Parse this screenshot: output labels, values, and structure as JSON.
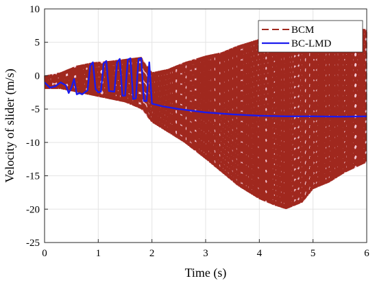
{
  "chart_data": {
    "type": "line",
    "xlabel": "Time (s)",
    "ylabel": "Velocity of slider (m/s)",
    "xlim": [
      0,
      6
    ],
    "ylim": [
      -25,
      10
    ],
    "xticks": [
      "0",
      "1",
      "2",
      "3",
      "4",
      "5",
      "6"
    ],
    "yticks": [
      "10",
      "5",
      "0",
      "-5",
      "-10",
      "-15",
      "-20",
      "-25"
    ],
    "grid": true,
    "legend_position": "top-right",
    "series": [
      {
        "name": "BCM",
        "color": "#a0281e",
        "style": "dashed",
        "envelope": {
          "t": [
            0.0,
            0.3,
            0.6,
            0.9,
            1.2,
            1.5,
            1.8,
            2.0,
            2.3,
            2.6,
            3.0,
            3.3,
            3.6,
            4.0,
            4.3,
            4.5,
            4.8,
            5.0,
            5.3,
            5.6,
            6.0
          ],
          "upper": [
            0.0,
            0.5,
            1.5,
            2.0,
            2.2,
            2.5,
            2.8,
            0.5,
            1.0,
            2.0,
            3.0,
            3.5,
            4.5,
            5.5,
            6.0,
            6.5,
            7.0,
            7.0,
            7.0,
            7.0,
            7.0
          ],
          "lower": [
            -2.0,
            -2.0,
            -2.5,
            -3.0,
            -3.5,
            -4.0,
            -5.0,
            -7.0,
            -8.5,
            -10.0,
            -12.5,
            -14.5,
            -16.5,
            -18.5,
            -19.5,
            -20.0,
            -19.0,
            -17.0,
            -16.0,
            -14.5,
            -13.0
          ]
        }
      },
      {
        "name": "BC-LMD",
        "color": "#1a1aee",
        "style": "solid",
        "x": [
          0.0,
          0.1,
          0.2,
          0.3,
          0.4,
          0.45,
          0.5,
          0.55,
          0.6,
          0.65,
          0.7,
          0.8,
          0.85,
          0.9,
          0.95,
          1.0,
          1.05,
          1.1,
          1.15,
          1.2,
          1.3,
          1.35,
          1.4,
          1.45,
          1.5,
          1.55,
          1.6,
          1.65,
          1.7,
          1.75,
          1.8,
          1.85,
          1.9,
          1.95,
          2.0,
          2.2,
          2.5,
          3.0,
          3.5,
          4.0,
          4.5,
          5.0,
          5.5,
          6.0
        ],
        "y": [
          -1.0,
          -1.8,
          -1.6,
          -1.0,
          -1.5,
          -2.6,
          -1.8,
          -0.5,
          -2.8,
          -2.6,
          -2.8,
          -2.2,
          1.5,
          2.0,
          -2.0,
          -2.5,
          -2.4,
          1.8,
          2.2,
          -2.3,
          -2.4,
          2.0,
          2.5,
          -3.0,
          -3.0,
          2.4,
          2.6,
          -3.5,
          -3.4,
          2.5,
          2.6,
          -3.8,
          -3.8,
          2.0,
          -4.2,
          -4.6,
          -5.0,
          -5.5,
          -5.8,
          -6.0,
          -6.1,
          -6.1,
          -6.15,
          -6.1
        ]
      }
    ]
  }
}
